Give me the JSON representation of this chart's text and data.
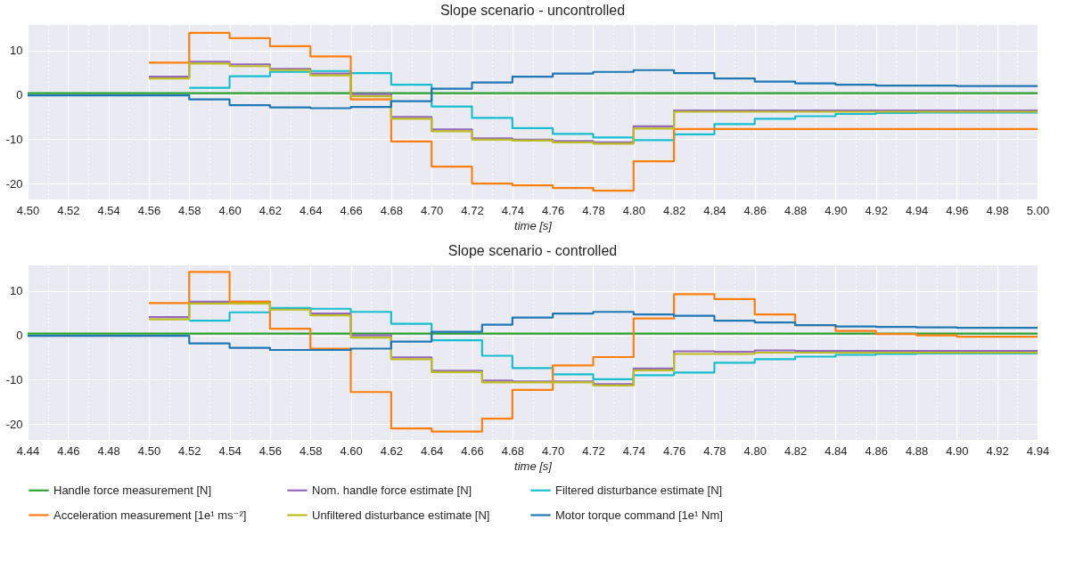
{
  "chart_data": [
    {
      "type": "step",
      "title": "Slope scenario - uncontrolled",
      "xlabel": "time [s]",
      "grid": true,
      "legend": false,
      "xlim": [
        4.5,
        5.0
      ],
      "ylim": [
        -23.6,
        15.8
      ],
      "yticks": [
        -20,
        -10,
        0,
        10
      ],
      "xticks": [
        {
          "value": 4.5,
          "label": "4.50"
        },
        {
          "value": 4.51,
          "label": null
        },
        {
          "value": 4.52,
          "label": "4.52"
        },
        {
          "value": 4.53,
          "label": null
        },
        {
          "value": 4.54,
          "label": "4.54"
        },
        {
          "value": 4.55,
          "label": null
        },
        {
          "value": 4.56,
          "label": "4.56"
        },
        {
          "value": 4.57,
          "label": null
        },
        {
          "value": 4.58,
          "label": "4.58"
        },
        {
          "value": 4.59,
          "label": null
        },
        {
          "value": 4.6,
          "label": "4.60"
        },
        {
          "value": 4.61,
          "label": null
        },
        {
          "value": 4.62,
          "label": "4.62"
        },
        {
          "value": 4.63,
          "label": null
        },
        {
          "value": 4.64,
          "label": "4.64"
        },
        {
          "value": 4.65,
          "label": null
        },
        {
          "value": 4.66,
          "label": "4.66"
        },
        {
          "value": 4.67,
          "label": null
        },
        {
          "value": 4.68,
          "label": "4.68"
        },
        {
          "value": 4.69,
          "label": null
        },
        {
          "value": 4.7,
          "label": "4.70"
        },
        {
          "value": 4.71,
          "label": null
        },
        {
          "value": 4.72,
          "label": "4.72"
        },
        {
          "value": 4.73,
          "label": null
        },
        {
          "value": 4.74,
          "label": "4.74"
        },
        {
          "value": 4.75,
          "label": null
        },
        {
          "value": 4.76,
          "label": "4.76"
        },
        {
          "value": 4.77,
          "label": null
        },
        {
          "value": 4.78,
          "label": "4.78"
        },
        {
          "value": 4.79,
          "label": null
        },
        {
          "value": 4.8,
          "label": "4.80"
        },
        {
          "value": 4.81,
          "label": null
        },
        {
          "value": 4.82,
          "label": "4.82"
        },
        {
          "value": 4.83,
          "label": null
        },
        {
          "value": 4.84,
          "label": "4.84"
        },
        {
          "value": 4.85,
          "label": null
        },
        {
          "value": 4.86,
          "label": "4.86"
        },
        {
          "value": 4.87,
          "label": null
        },
        {
          "value": 4.88,
          "label": "4.88"
        },
        {
          "value": 4.89,
          "label": null
        },
        {
          "value": 4.9,
          "label": "4.90"
        },
        {
          "value": 4.91,
          "label": null
        },
        {
          "value": 4.92,
          "label": "4.92"
        },
        {
          "value": 4.93,
          "label": null
        },
        {
          "value": 4.94,
          "label": "4.94"
        },
        {
          "value": 4.95,
          "label": null
        },
        {
          "value": 4.96,
          "label": "4.96"
        },
        {
          "value": 4.97,
          "label": null
        },
        {
          "value": 4.98,
          "label": "4.98"
        },
        {
          "value": 4.99,
          "label": null
        },
        {
          "value": 5.0,
          "label": "5.00"
        }
      ],
      "x": [
        4.5,
        4.52,
        4.54,
        4.56,
        4.58,
        4.6,
        4.62,
        4.64,
        4.66,
        4.68,
        4.7,
        4.72,
        4.74,
        4.76,
        4.78,
        4.8,
        4.82,
        4.84,
        4.86,
        4.88,
        4.9,
        4.92,
        4.94,
        4.96,
        4.98,
        5.0
      ],
      "series": [
        {
          "color": "#2ca02c",
          "values": [
            0.4,
            0.4,
            0.4,
            0.4,
            0.4,
            0.4,
            0.4,
            0.4,
            0.4,
            0.4,
            0.4,
            0.4,
            0.4,
            0.4,
            0.4,
            0.4,
            0.4,
            0.4,
            0.4,
            0.4,
            0.4,
            0.4,
            0.4,
            0.4,
            0.4,
            0.4
          ]
        },
        {
          "color": "#9467bd",
          "values": [
            null,
            null,
            null,
            4.1,
            7.5,
            6.9,
            5.9,
            4.8,
            0.2,
            -5,
            -7.8,
            -9.8,
            -10.1,
            -10.4,
            -10.7,
            -7.1,
            -3.5,
            -3.5,
            -3.5,
            -3.5,
            -3.5,
            -3.5,
            -3.5,
            -3.5,
            -3.5,
            -3.5
          ]
        },
        {
          "color": "#17becf",
          "values": [
            null,
            null,
            null,
            null,
            1.6,
            4.2,
            5.2,
            5.4,
            4.9,
            2.3,
            -2.6,
            -5.2,
            -7.5,
            -8.8,
            -9.6,
            -10.2,
            -8.9,
            -6.6,
            -5.4,
            -4.8,
            -4.3,
            -4.1,
            -4,
            -4,
            -4,
            -4
          ]
        },
        {
          "color": "#ff7f0e",
          "values": [
            null,
            null,
            null,
            7.3,
            14,
            12.8,
            11,
            8.7,
            -1,
            -10.5,
            -16.2,
            -20,
            -20.4,
            -21,
            -21.6,
            -15,
            -7.7,
            -7.7,
            -7.7,
            -7.7,
            -7.7,
            -7.7,
            -7.7,
            -7.7,
            -7.7,
            -7.7
          ]
        },
        {
          "color": "#bcbd22",
          "values": [
            null,
            null,
            null,
            3.7,
            7.1,
            6.5,
            5.6,
            4.4,
            -0.3,
            -5.4,
            -8.2,
            -10.1,
            -10.3,
            -10.7,
            -11,
            -7.6,
            -3.8,
            -3.8,
            -3.8,
            -3.8,
            -3.8,
            -3.8,
            -3.8,
            -3.8,
            -3.8,
            -3.8
          ]
        },
        {
          "color": "#1f77b4",
          "values": [
            -0.1,
            -0.1,
            -0.1,
            -0.1,
            -1,
            -2.3,
            -2.8,
            -3,
            -2.7,
            -1.4,
            1.4,
            2.8,
            4.1,
            4.8,
            5.2,
            5.6,
            4.9,
            3.7,
            3,
            2.6,
            2.3,
            2.1,
            2.1,
            2,
            2,
            2
          ]
        }
      ]
    },
    {
      "type": "step",
      "title": "Slope scenario - controlled",
      "xlabel": "time [s]",
      "grid": true,
      "legend": "bottom",
      "xlim": [
        4.44,
        4.94
      ],
      "ylim": [
        -23.6,
        15.8
      ],
      "yticks": [
        -20,
        -10,
        0,
        10
      ],
      "xticks": [
        {
          "value": 4.44,
          "label": "4.44"
        },
        {
          "value": 4.45,
          "label": null
        },
        {
          "value": 4.46,
          "label": "4.46"
        },
        {
          "value": 4.47,
          "label": null
        },
        {
          "value": 4.48,
          "label": "4.48"
        },
        {
          "value": 4.49,
          "label": null
        },
        {
          "value": 4.5,
          "label": "4.50"
        },
        {
          "value": 4.51,
          "label": null
        },
        {
          "value": 4.52,
          "label": "4.52"
        },
        {
          "value": 4.53,
          "label": null
        },
        {
          "value": 4.54,
          "label": "4.54"
        },
        {
          "value": 4.55,
          "label": null
        },
        {
          "value": 4.56,
          "label": "4.56"
        },
        {
          "value": 4.57,
          "label": null
        },
        {
          "value": 4.58,
          "label": "4.58"
        },
        {
          "value": 4.59,
          "label": null
        },
        {
          "value": 4.6,
          "label": "4.60"
        },
        {
          "value": 4.61,
          "label": null
        },
        {
          "value": 4.62,
          "label": "4.62"
        },
        {
          "value": 4.63,
          "label": null
        },
        {
          "value": 4.64,
          "label": "4.64"
        },
        {
          "value": 4.65,
          "label": null
        },
        {
          "value": 4.66,
          "label": "4.66"
        },
        {
          "value": 4.67,
          "label": null
        },
        {
          "value": 4.68,
          "label": "4.68"
        },
        {
          "value": 4.69,
          "label": null
        },
        {
          "value": 4.7,
          "label": "4.70"
        },
        {
          "value": 4.71,
          "label": null
        },
        {
          "value": 4.72,
          "label": "4.72"
        },
        {
          "value": 4.73,
          "label": null
        },
        {
          "value": 4.74,
          "label": "4.74"
        },
        {
          "value": 4.75,
          "label": null
        },
        {
          "value": 4.76,
          "label": "4.76"
        },
        {
          "value": 4.77,
          "label": null
        },
        {
          "value": 4.78,
          "label": "4.78"
        },
        {
          "value": 4.79,
          "label": null
        },
        {
          "value": 4.8,
          "label": "4.80"
        },
        {
          "value": 4.81,
          "label": null
        },
        {
          "value": 4.82,
          "label": "4.82"
        },
        {
          "value": 4.83,
          "label": null
        },
        {
          "value": 4.84,
          "label": "4.84"
        },
        {
          "value": 4.85,
          "label": null
        },
        {
          "value": 4.86,
          "label": "4.86"
        },
        {
          "value": 4.87,
          "label": null
        },
        {
          "value": 4.88,
          "label": "4.88"
        },
        {
          "value": 4.89,
          "label": null
        },
        {
          "value": 4.9,
          "label": "4.90"
        },
        {
          "value": 4.91,
          "label": null
        },
        {
          "value": 4.92,
          "label": "4.92"
        },
        {
          "value": 4.93,
          "label": null
        },
        {
          "value": 4.94,
          "label": "4.94"
        }
      ],
      "x": [
        4.44,
        4.46,
        4.48,
        4.5,
        4.52,
        4.54,
        4.56,
        4.58,
        4.6,
        4.62,
        4.64,
        4.665,
        4.68,
        4.7,
        4.72,
        4.74,
        4.76,
        4.78,
        4.8,
        4.82,
        4.84,
        4.86,
        4.88,
        4.9,
        4.92,
        4.94
      ],
      "series": [
        {
          "name": "Handle force measurement [N]",
          "color": "#2ca02c",
          "values": [
            0.4,
            0.4,
            0.4,
            0.4,
            0.4,
            0.4,
            0.4,
            0.4,
            0.4,
            0.4,
            0.4,
            0.4,
            0.4,
            0.4,
            0.4,
            0.4,
            0.4,
            0.4,
            0.4,
            0.4,
            0.4,
            0.4,
            0.4,
            0.4,
            0.4,
            0.4
          ]
        },
        {
          "name": "Nom. handle force estimate [N]",
          "color": "#9467bd",
          "values": [
            null,
            null,
            null,
            4.1,
            7.6,
            7.6,
            6,
            4.9,
            0,
            -5,
            -8,
            -10.2,
            -10.4,
            -10.4,
            -11,
            -7.5,
            -3.6,
            -3.7,
            -3.4,
            -3.5,
            -3.5,
            -3.5,
            -3.5,
            -3.5,
            -3.5,
            -3.5
          ]
        },
        {
          "name": "Filtered disturbance estimate [N]",
          "color": "#17becf",
          "values": [
            null,
            null,
            null,
            null,
            3.3,
            5.2,
            6.2,
            6,
            5.3,
            2.6,
            -1.1,
            -4.6,
            -7.4,
            -8.8,
            -9.9,
            -9,
            -8.4,
            -6.2,
            -5.4,
            -4.8,
            -4.4,
            -4.2,
            -4.1,
            -4.1,
            -4.1,
            -4.1
          ]
        },
        {
          "name": "Acceleration measurement [1e¹ ms⁻²]",
          "color": "#ff7f0e",
          "values": [
            null,
            null,
            null,
            7.3,
            14.3,
            7.6,
            1.5,
            -3,
            -12.8,
            -21,
            -21.7,
            -18.8,
            -12.3,
            -6.8,
            -4.9,
            3.8,
            9.3,
            8.2,
            4.7,
            2.3,
            1,
            0.3,
            0,
            -0.3,
            -0.3,
            -0.3
          ]
        },
        {
          "name": "Unfiltered disturbance estimate [N]",
          "color": "#bcbd22",
          "values": [
            null,
            null,
            null,
            3.6,
            7.2,
            7.2,
            5.8,
            4.5,
            -0.5,
            -5.4,
            -8.3,
            -10.6,
            -10.6,
            -10.6,
            -11.3,
            -7.9,
            -4.2,
            -4.2,
            -3.9,
            -3.9,
            -3.9,
            -3.9,
            -3.9,
            -3.9,
            -3.9,
            -3.9
          ]
        },
        {
          "name": "Motor torque command [1e¹ Nm]",
          "color": "#1f77b4",
          "values": [
            -0.1,
            -0.1,
            -0.1,
            -0.1,
            -1.8,
            -2.8,
            -3.3,
            -3.3,
            -3,
            -1.4,
            0.8,
            2.4,
            4,
            4.9,
            5.3,
            4.7,
            4.4,
            3.3,
            2.9,
            2.3,
            2,
            1.9,
            1.8,
            1.7,
            1.7,
            1.7
          ]
        }
      ]
    }
  ]
}
